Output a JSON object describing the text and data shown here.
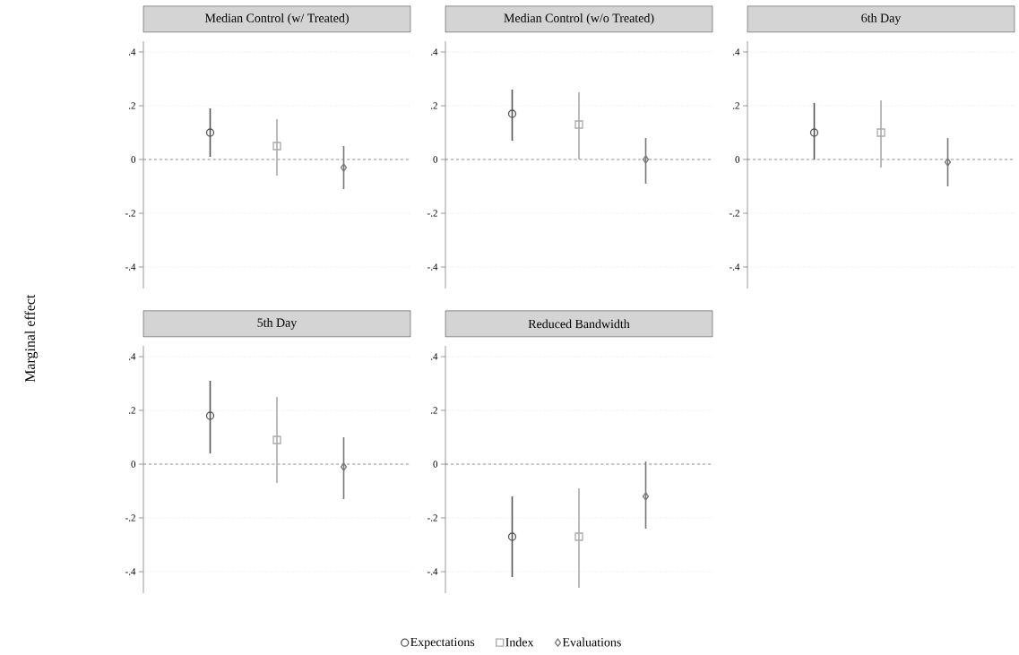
{
  "chart_data": [
    {
      "type": "scatter",
      "title": "Median Control (w/ Treated)",
      "categories": [
        null,
        null,
        null
      ],
      "ylim": [
        -0.48,
        0.44
      ],
      "yticks": [
        {
          "value": 0.4,
          "label": ".4"
        },
        {
          "value": 0.2,
          "label": ".2"
        },
        {
          "value": 0,
          "label": "0"
        },
        {
          "value": -0.2,
          "label": "-.2"
        },
        {
          "value": -0.4,
          "label": "-.4"
        }
      ],
      "grid": "y",
      "tick_labels": "y",
      "ref_lines": [
        {
          "axis": "y",
          "value": 0,
          "color": "#777777",
          "line_style": "dashed"
        }
      ],
      "series": [
        {
          "color": "#555555",
          "marker": "circle",
          "values": [
            0.1,
            null,
            null
          ],
          "errors": [
            [
              0.01,
              0.19
            ],
            null,
            null
          ]
        },
        {
          "color": "#aaaaaa",
          "marker": "square",
          "values": [
            null,
            0.05,
            null
          ],
          "errors": [
            null,
            [
              -0.06,
              0.15
            ],
            null
          ]
        },
        {
          "color": "#777777",
          "marker": "diamond",
          "values": [
            null,
            null,
            -0.03
          ],
          "errors": [
            null,
            null,
            [
              -0.11,
              0.05
            ]
          ]
        }
      ]
    },
    {
      "type": "scatter",
      "title": "Median Control (w/o Treated)",
      "categories": [
        null,
        null,
        null
      ],
      "ylim": [
        -0.48,
        0.44
      ],
      "yticks": [
        {
          "value": 0.4,
          "label": ".4"
        },
        {
          "value": 0.2,
          "label": ".2"
        },
        {
          "value": 0,
          "label": "0"
        },
        {
          "value": -0.2,
          "label": "-.2"
        },
        {
          "value": -0.4,
          "label": "-.4"
        }
      ],
      "grid": "y",
      "tick_labels": "y",
      "ref_lines": [
        {
          "axis": "y",
          "value": 0,
          "color": "#777777",
          "line_style": "dashed"
        }
      ],
      "series": [
        {
          "color": "#555555",
          "marker": "circle",
          "values": [
            0.17,
            null,
            null
          ],
          "errors": [
            [
              0.07,
              0.26
            ],
            null,
            null
          ]
        },
        {
          "color": "#aaaaaa",
          "marker": "square",
          "values": [
            null,
            0.13,
            null
          ],
          "errors": [
            null,
            [
              0.0,
              0.25
            ],
            null
          ]
        },
        {
          "color": "#777777",
          "marker": "diamond",
          "values": [
            null,
            null,
            0.0
          ],
          "errors": [
            null,
            null,
            [
              -0.09,
              0.08
            ]
          ]
        }
      ]
    },
    {
      "type": "scatter",
      "title": "6th Day",
      "categories": [
        null,
        null,
        null
      ],
      "ylim": [
        -0.48,
        0.44
      ],
      "yticks": [
        {
          "value": 0.4,
          "label": ".4"
        },
        {
          "value": 0.2,
          "label": ".2"
        },
        {
          "value": 0,
          "label": "0"
        },
        {
          "value": -0.2,
          "label": "-.2"
        },
        {
          "value": -0.4,
          "label": "-.4"
        }
      ],
      "grid": "y",
      "tick_labels": "y",
      "ref_lines": [
        {
          "axis": "y",
          "value": 0,
          "color": "#777777",
          "line_style": "dashed"
        }
      ],
      "series": [
        {
          "color": "#555555",
          "marker": "circle",
          "values": [
            0.1,
            null,
            null
          ],
          "errors": [
            [
              0.0,
              0.21
            ],
            null,
            null
          ]
        },
        {
          "color": "#aaaaaa",
          "marker": "square",
          "values": [
            null,
            0.1,
            null
          ],
          "errors": [
            null,
            [
              -0.03,
              0.22
            ],
            null
          ]
        },
        {
          "color": "#777777",
          "marker": "diamond",
          "values": [
            null,
            null,
            -0.01
          ],
          "errors": [
            null,
            null,
            [
              -0.1,
              0.08
            ]
          ]
        }
      ]
    },
    {
      "type": "scatter",
      "title": "5th Day",
      "ylabel": "Marginal effect",
      "categories": [
        null,
        null,
        null
      ],
      "ylim": [
        -0.48,
        0.44
      ],
      "yticks": [
        {
          "value": 0.4,
          "label": ".4"
        },
        {
          "value": 0.2,
          "label": ".2"
        },
        {
          "value": 0,
          "label": "0"
        },
        {
          "value": -0.2,
          "label": "-.2"
        },
        {
          "value": -0.4,
          "label": "-.4"
        }
      ],
      "grid": "y",
      "tick_labels": "y",
      "ref_lines": [
        {
          "axis": "y",
          "value": 0,
          "color": "#777777",
          "line_style": "dashed"
        }
      ],
      "series": [
        {
          "color": "#555555",
          "marker": "circle",
          "values": [
            0.18,
            null,
            null
          ],
          "errors": [
            [
              0.04,
              0.31
            ],
            null,
            null
          ]
        },
        {
          "color": "#aaaaaa",
          "marker": "square",
          "values": [
            null,
            0.09,
            null
          ],
          "errors": [
            null,
            [
              -0.07,
              0.25
            ],
            null
          ]
        },
        {
          "color": "#777777",
          "marker": "diamond",
          "values": [
            null,
            null,
            -0.01
          ],
          "errors": [
            null,
            null,
            [
              -0.13,
              0.1
            ]
          ]
        }
      ]
    },
    {
      "type": "scatter",
      "title": "Reduced Bandwidth",
      "categories": [
        null,
        null,
        null
      ],
      "ylim": [
        -0.48,
        0.44
      ],
      "yticks": [
        {
          "value": 0.4,
          "label": ".4"
        },
        {
          "value": 0.2,
          "label": ".2"
        },
        {
          "value": 0,
          "label": "0"
        },
        {
          "value": -0.2,
          "label": "-.2"
        },
        {
          "value": -0.4,
          "label": "-.4"
        }
      ],
      "grid": "y",
      "tick_labels": "y",
      "legend": "bottom",
      "ref_lines": [
        {
          "axis": "y",
          "value": 0,
          "color": "#777777",
          "line_style": "dashed"
        }
      ],
      "series": [
        {
          "name": "Expectations",
          "color": "#555555",
          "marker": "circle",
          "values": [
            -0.27,
            null,
            null
          ],
          "errors": [
            [
              -0.42,
              -0.12
            ],
            null,
            null
          ]
        },
        {
          "name": "Index",
          "color": "#aaaaaa",
          "marker": "square",
          "values": [
            null,
            -0.27,
            null
          ],
          "errors": [
            null,
            [
              -0.46,
              -0.09
            ],
            null
          ]
        },
        {
          "name": "Evaluations",
          "color": "#777777",
          "marker": "diamond",
          "values": [
            null,
            null,
            -0.12
          ],
          "errors": [
            null,
            null,
            [
              -0.24,
              0.01
            ]
          ]
        }
      ]
    }
  ]
}
